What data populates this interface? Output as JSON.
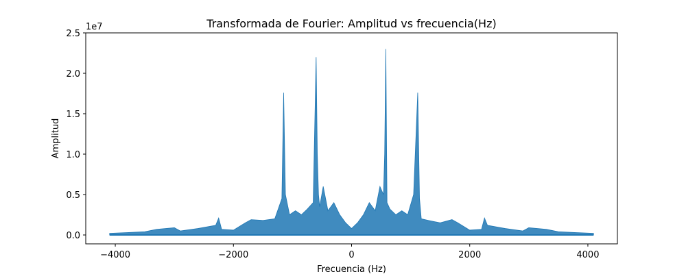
{
  "chart_data": {
    "type": "area",
    "title": "Transformada de Fourier: Amplitud vs frecuencia(Hz)",
    "xlabel": "Frecuencia (Hz)",
    "ylabel": "Amplitud",
    "y_offset_text": "1e7",
    "xlim": [
      -4500,
      4500
    ],
    "ylim": [
      -1100000,
      25000000
    ],
    "x_ticks": [
      -4000,
      -2000,
      0,
      2000,
      4000
    ],
    "x_tick_labels": [
      "−4000",
      "−2000",
      "0",
      "2000",
      "4000"
    ],
    "y_ticks": [
      0,
      5000000,
      10000000,
      15000000,
      20000000,
      25000000
    ],
    "y_tick_labels": [
      "0.0",
      "0.5",
      "1.0",
      "1.5",
      "2.0",
      "2.5"
    ],
    "grid": false,
    "color": "#1f77b4",
    "series": [
      {
        "x": [
          -4096,
          -3800,
          -3500,
          -3300,
          -3000,
          -2900,
          -2600,
          -2300,
          -2250,
          -2200,
          -2000,
          -1800,
          -1700,
          -1500,
          -1300,
          -1180,
          -1150,
          -1120,
          -1050,
          -950,
          -850,
          -750,
          -650,
          -600,
          -580,
          -560,
          -540,
          -480,
          -400,
          -300,
          -200,
          -100,
          0,
          100,
          200,
          300,
          400,
          480,
          540,
          560,
          580,
          600,
          650,
          750,
          850,
          950,
          1050,
          1120,
          1150,
          1180,
          1300,
          1500,
          1700,
          1800,
          2000,
          2200,
          2250,
          2300,
          2600,
          2900,
          3000,
          3300,
          3500,
          3800,
          4096
        ],
        "y": [
          200000,
          300000,
          400000,
          700000,
          900000,
          500000,
          800000,
          1200000,
          2100000,
          700000,
          600000,
          1500000,
          1900000,
          1800000,
          2000000,
          4500000,
          17600000,
          5000000,
          2500000,
          3000000,
          2500000,
          3200000,
          4000000,
          22000000,
          10000000,
          5000000,
          3500000,
          6000000,
          3000000,
          4000000,
          2500000,
          1500000,
          800000,
          1500000,
          2500000,
          4000000,
          3000000,
          6000000,
          5000000,
          10000000,
          23000000,
          4000000,
          3200000,
          2500000,
          3000000,
          2500000,
          5000000,
          17600000,
          4500000,
          2000000,
          1800000,
          1500000,
          1900000,
          1500000,
          600000,
          700000,
          2100000,
          1200000,
          800000,
          500000,
          900000,
          700000,
          400000,
          300000,
          200000
        ]
      }
    ]
  }
}
